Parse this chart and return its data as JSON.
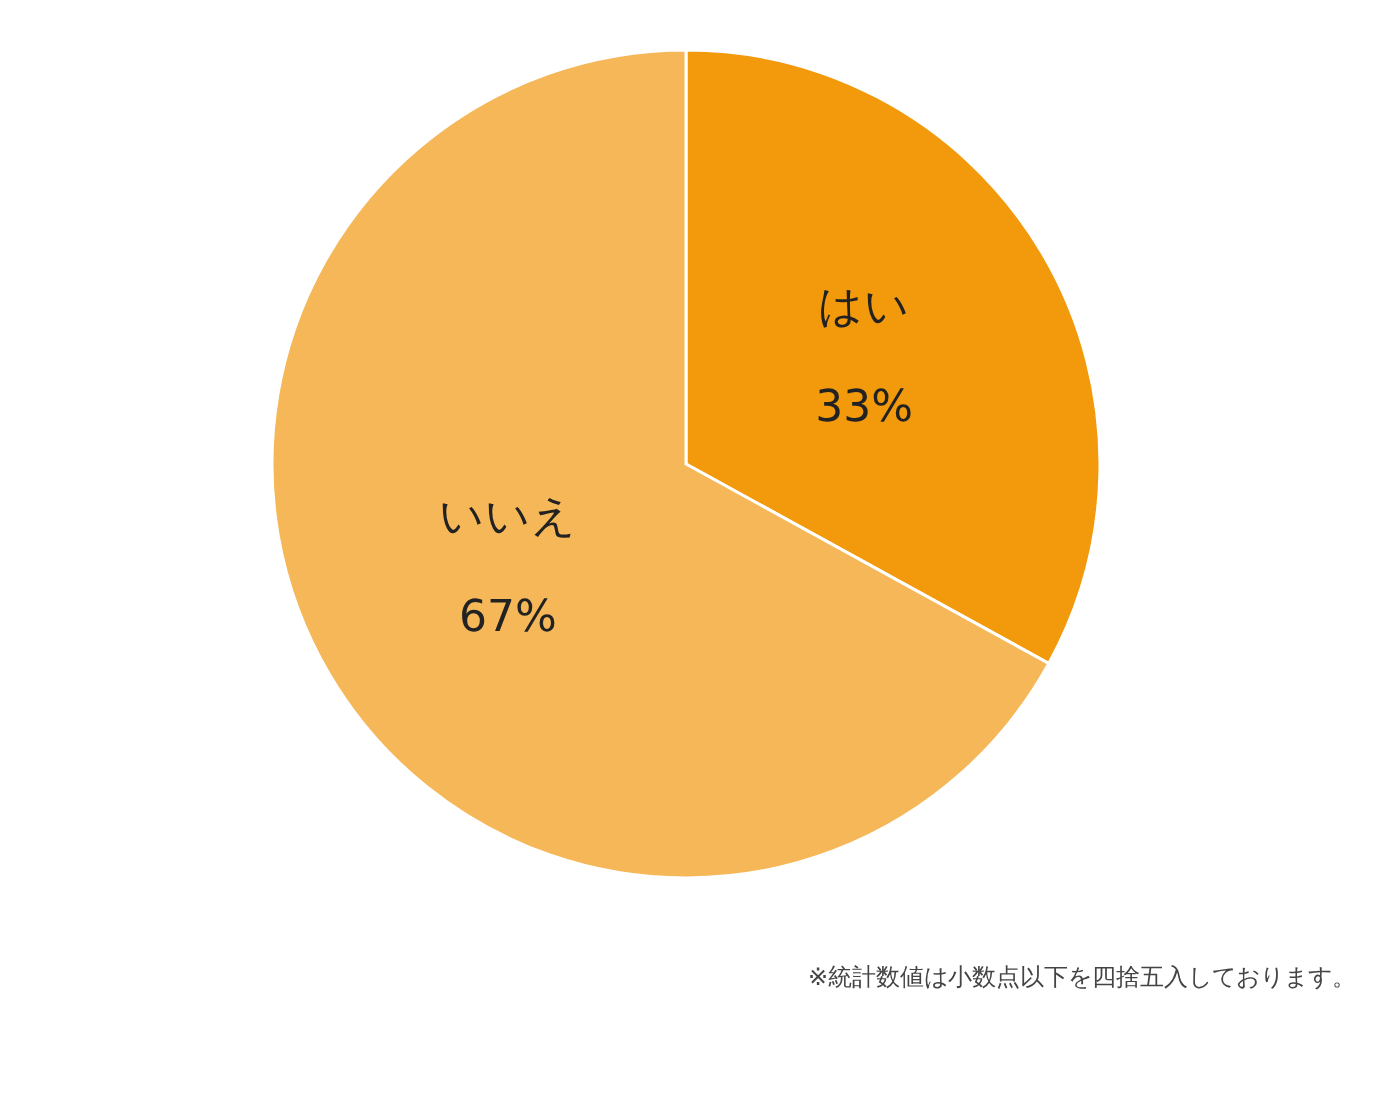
{
  "chart_data": {
    "type": "pie",
    "categories": [
      "はい",
      "いいえ"
    ],
    "values": [
      33,
      67
    ],
    "colors": [
      "#f29a0c",
      "#f5b757"
    ],
    "value_labels": [
      "33%",
      "67%"
    ],
    "legend": false,
    "annotations": [
      "※統計数値は小数点以下を四捨五入しております。"
    ]
  }
}
